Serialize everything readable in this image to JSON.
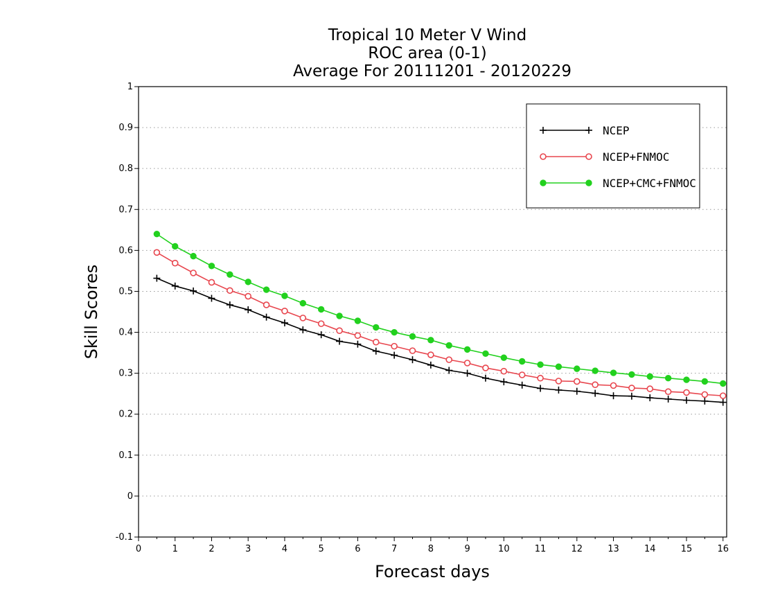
{
  "chart_data": {
    "type": "line",
    "title": "Tropical 10 Meter V Wind",
    "subtitle": "ROC area (0-1)",
    "subtitle2": "Average For 20111201 - 20120229",
    "xlabel": "Forecast days",
    "ylabel": "Skill Scores",
    "xlim": [
      0,
      16.1
    ],
    "ylim": [
      -0.1,
      1
    ],
    "xticks": [
      "0",
      "1",
      "2",
      "3",
      "4",
      "5",
      "6",
      "7",
      "8",
      "9",
      "10",
      "11",
      "12",
      "13",
      "14",
      "15",
      "16"
    ],
    "yticks": [
      "-0.1",
      "0",
      "0.1",
      "0.2",
      "0.3",
      "0.4",
      "0.5",
      "0.6",
      "0.7",
      "0.8",
      "0.9",
      "1"
    ],
    "grid": "horizontal dotted",
    "legend_position": "top-right",
    "x": [
      0.5,
      1,
      1.5,
      2,
      2.5,
      3,
      3.5,
      4,
      4.5,
      5,
      5.5,
      6,
      6.5,
      7,
      7.5,
      8,
      8.5,
      9,
      9.5,
      10,
      10.5,
      11,
      11.5,
      12,
      12.5,
      13,
      13.5,
      14,
      14.5,
      15,
      15.5,
      16
    ],
    "series": [
      {
        "name": "NCEP",
        "color": "#000000",
        "marker": "plus",
        "values": [
          0.532,
          0.513,
          0.501,
          0.483,
          0.467,
          0.455,
          0.437,
          0.423,
          0.406,
          0.394,
          0.378,
          0.371,
          0.354,
          0.344,
          0.333,
          0.32,
          0.307,
          0.3,
          0.288,
          0.279,
          0.271,
          0.263,
          0.259,
          0.256,
          0.251,
          0.245,
          0.244,
          0.24,
          0.237,
          0.234,
          0.232,
          0.229
        ]
      },
      {
        "name": "NCEP+FNMOC",
        "color": "#e8464e",
        "marker": "open-circle",
        "values": [
          0.595,
          0.569,
          0.545,
          0.522,
          0.502,
          0.488,
          0.467,
          0.452,
          0.435,
          0.421,
          0.404,
          0.392,
          0.376,
          0.366,
          0.355,
          0.345,
          0.333,
          0.325,
          0.313,
          0.305,
          0.296,
          0.288,
          0.281,
          0.28,
          0.272,
          0.27,
          0.264,
          0.262,
          0.255,
          0.253,
          0.248,
          0.245
        ]
      },
      {
        "name": "NCEP+CMC+FNMOC",
        "color": "#22d11e",
        "marker": "filled-circle",
        "values": [
          0.64,
          0.61,
          0.586,
          0.562,
          0.541,
          0.523,
          0.504,
          0.489,
          0.471,
          0.456,
          0.44,
          0.428,
          0.412,
          0.4,
          0.39,
          0.381,
          0.368,
          0.358,
          0.348,
          0.338,
          0.329,
          0.321,
          0.316,
          0.311,
          0.306,
          0.301,
          0.297,
          0.292,
          0.288,
          0.284,
          0.28,
          0.275
        ]
      }
    ]
  }
}
